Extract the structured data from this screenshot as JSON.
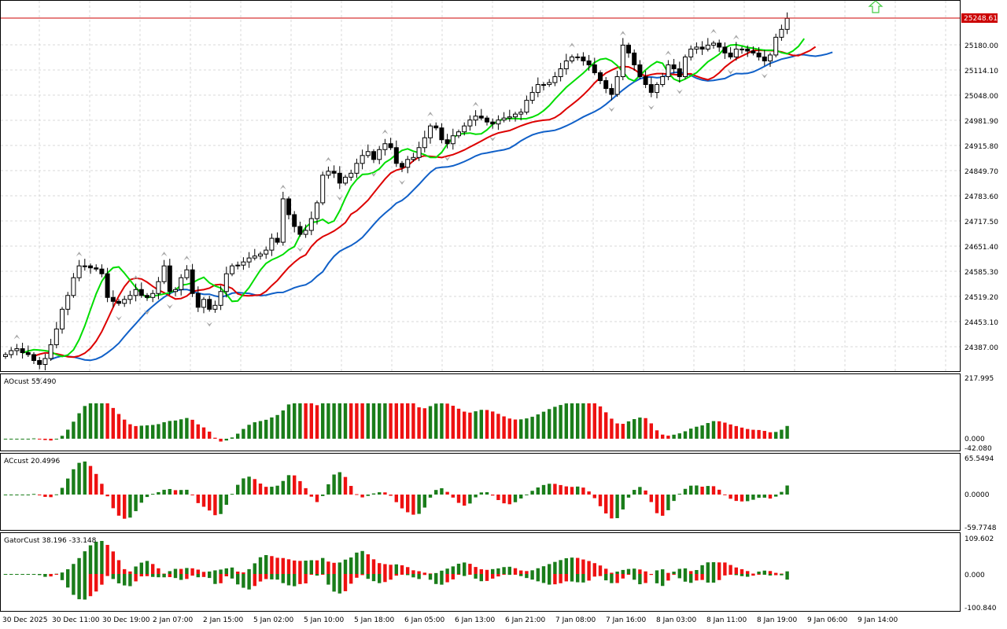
{
  "colors": {
    "bull_bar": "#1a7d1a",
    "bear_bar": "#ee1111",
    "grid": "#d8d8d8",
    "lips": "#00dd00",
    "teeth": "#dd0000",
    "jaw": "#1060c8",
    "price_line": "#cc0000",
    "fractal": "#a8a8a8",
    "arrow": "#44cc44"
  },
  "main": {
    "price_axis": [
      "25180.00",
      "25114.10",
      "25048.00",
      "24981.90",
      "24915.80",
      "24849.70",
      "24783.60",
      "24717.50",
      "24651.40",
      "24585.30",
      "24519.20",
      "24453.10",
      "24387.00"
    ],
    "current_price_label": "25248.61",
    "current_price": 25248.61,
    "up_arrow_icon": "up-arrow-icon"
  },
  "panes": [
    {
      "label": "AOcust 55.490",
      "axis": [
        "217.995",
        "0.000",
        "-42.080"
      ]
    },
    {
      "label": "ACcust 20.4996",
      "axis": [
        "65.5494",
        "0.0000",
        "-59.7748"
      ]
    },
    {
      "label": "GatorCust 38.196 -33.148",
      "axis": [
        "109.602",
        "0.000",
        "-100.840"
      ]
    }
  ],
  "time_axis": [
    "30 Dec 2025",
    "30 Dec 11:00",
    "30 Dec 19:00",
    "2 Jan 07:00",
    "2 Jan 15:00",
    "5 Jan 02:00",
    "5 Jan 10:00",
    "5 Jan 18:00",
    "6 Jan 05:00",
    "6 Jan 13:00",
    "6 Jan 21:00",
    "7 Jan 08:00",
    "7 Jan 16:00",
    "8 Jan 03:00",
    "8 Jan 11:00",
    "8 Jan 19:00",
    "9 Jan 06:00",
    "9 Jan 14:00"
  ],
  "chart_data": {
    "type": "candlestick",
    "ohlc_close": [
      24395,
      24405,
      24410,
      24400,
      24395,
      24380,
      24370,
      24385,
      24420,
      24460,
      24510,
      24545,
      24590,
      24620,
      24620,
      24615,
      24612,
      24600,
      24540,
      24530,
      24525,
      24535,
      24545,
      24560,
      24545,
      24540,
      24550,
      24580,
      24620,
      24555,
      24560,
      24590,
      24610,
      24550,
      24515,
      24535,
      24510,
      24520,
      24555,
      24600,
      24620,
      24622,
      24630,
      24640,
      24645,
      24650,
      24660,
      24690,
      24680,
      24790,
      24750,
      24720,
      24700,
      24710,
      24740,
      24780,
      24850,
      24860,
      24855,
      24830,
      24845,
      24855,
      24880,
      24900,
      24910,
      24890,
      24915,
      24930,
      24920,
      24880,
      24870,
      24890,
      24895,
      24920,
      24945,
      24975,
      24970,
      24940,
      24930,
      24950,
      24960,
      24975,
      24990,
      25000,
      24995,
      24985,
      24980,
      24990,
      24995,
      24998,
      25005,
      25010,
      25040,
      25060,
      25080,
      25080,
      25085,
      25100,
      25120,
      25140,
      25150,
      25150,
      25140,
      25130,
      25110,
      25090,
      25070,
      25055,
      25100,
      25180,
      25160,
      25130,
      25100,
      25080,
      25060,
      25080,
      25100,
      25130,
      25120,
      25100,
      25150,
      25170,
      25175,
      25170,
      25180,
      25185,
      25175,
      25160,
      25150,
      25170,
      25170,
      25165,
      25160,
      25150,
      25140,
      25155,
      25200,
      25220,
      25248
    ]
  }
}
